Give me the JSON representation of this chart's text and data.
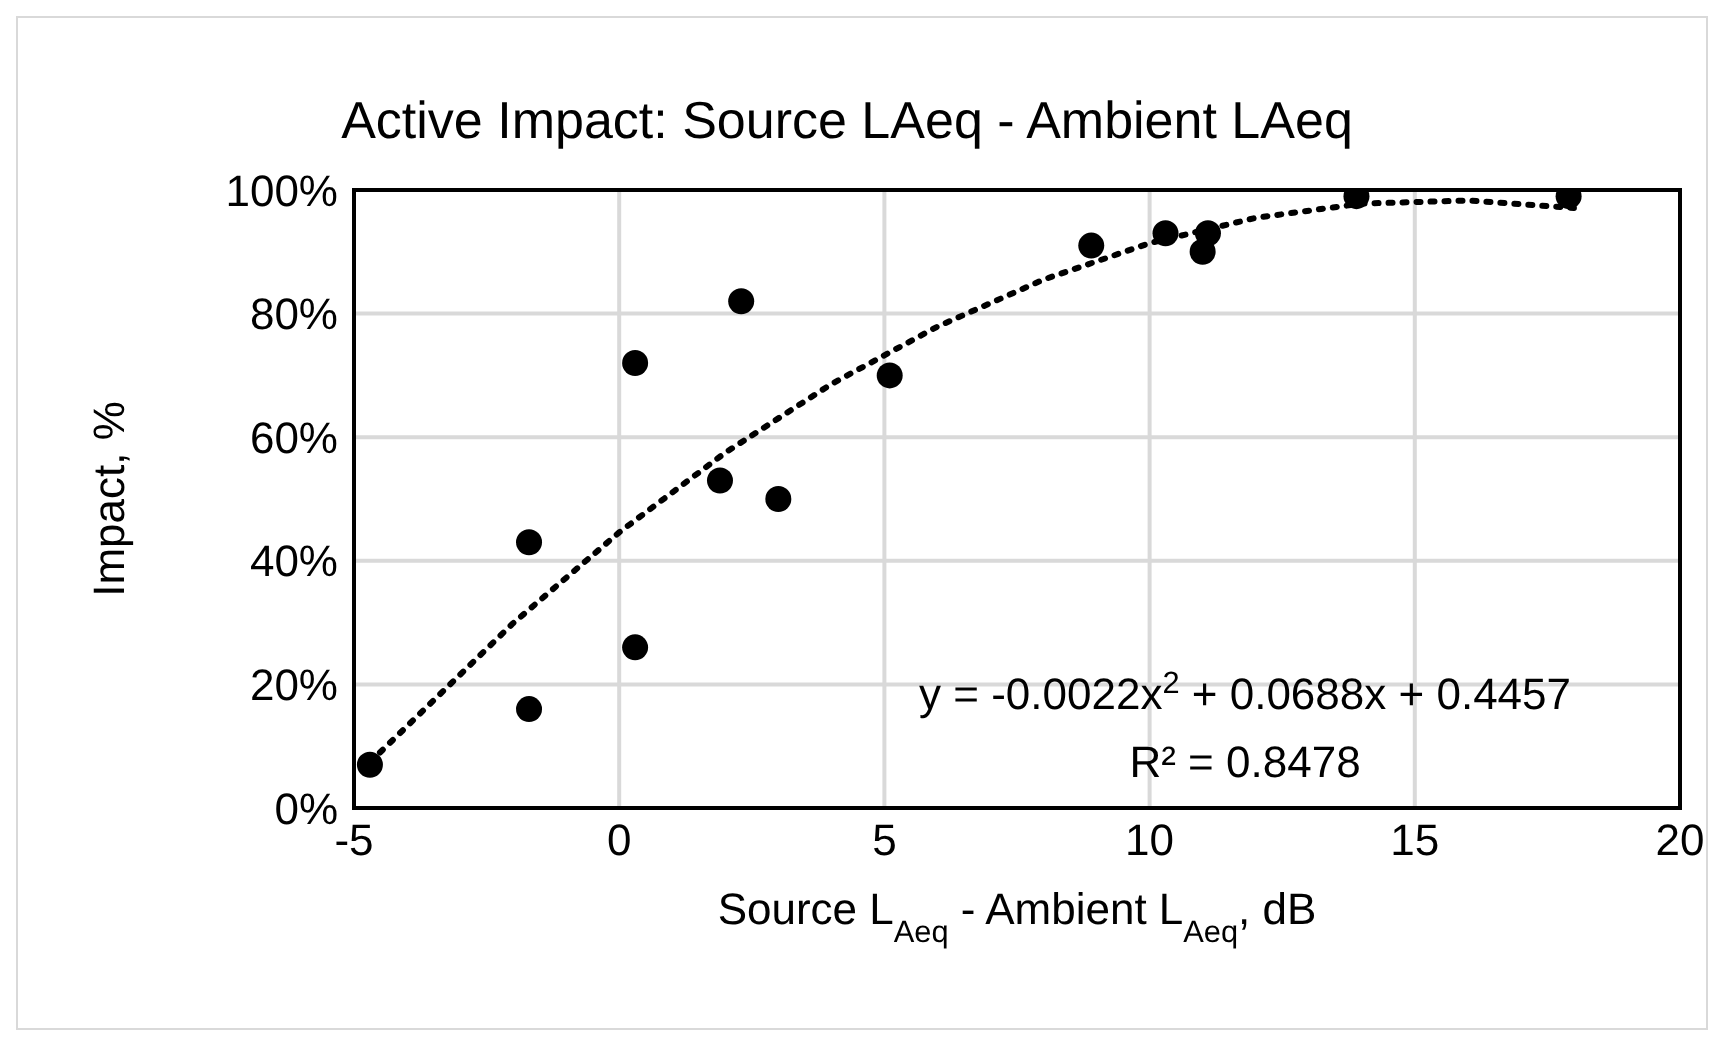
{
  "chart_data": {
    "type": "scatter",
    "title": "Active Impact: Source LAeq - Ambient LAeq",
    "xlabel": "Source L$_{Aeq}$ - Ambient L$_{Aeq}$, dB",
    "ylabel": "Impact, %",
    "xlim": [
      -5,
      20
    ],
    "xticks": [
      -5,
      0,
      5,
      10,
      15,
      20
    ],
    "ylim": [
      0,
      100
    ],
    "yticks": [
      {
        "value": 0,
        "label": "0%"
      },
      {
        "value": 20,
        "label": "20%"
      },
      {
        "value": 40,
        "label": "40%"
      },
      {
        "value": 60,
        "label": "60%"
      },
      {
        "value": 80,
        "label": "80%"
      },
      {
        "value": 100,
        "label": "100%"
      }
    ],
    "grid": true,
    "series": [
      {
        "color": "#000000",
        "marker": "circle",
        "x": [
          -4.7,
          -1.7,
          -1.7,
          0.3,
          0.3,
          2.3,
          1.9,
          3.0,
          5.1,
          8.9,
          10.3,
          11.1,
          11.0,
          13.9,
          17.9
        ],
        "values": [
          7,
          43,
          16,
          72,
          26,
          82,
          53,
          50,
          70,
          91,
          93,
          93,
          90,
          99,
          99
        ]
      },
      {
        "type": "line",
        "color": "#000000",
        "line_style": "dotted",
        "marker": "none",
        "x": [
          -4.7,
          -2,
          0,
          2,
          4,
          6,
          8,
          10,
          12,
          14,
          16,
          18
        ],
        "values": [
          7.4,
          29.9,
          44.6,
          57.5,
          68.6,
          77.9,
          85.5,
          91.4,
          95.5,
          97.8,
          98.3,
          97.1
        ]
      }
    ],
    "annotations": [
      "y = -0.0022x$^{2}$ + 0.0688x + 0.4457",
      "R² = 0.8478"
    ]
  }
}
